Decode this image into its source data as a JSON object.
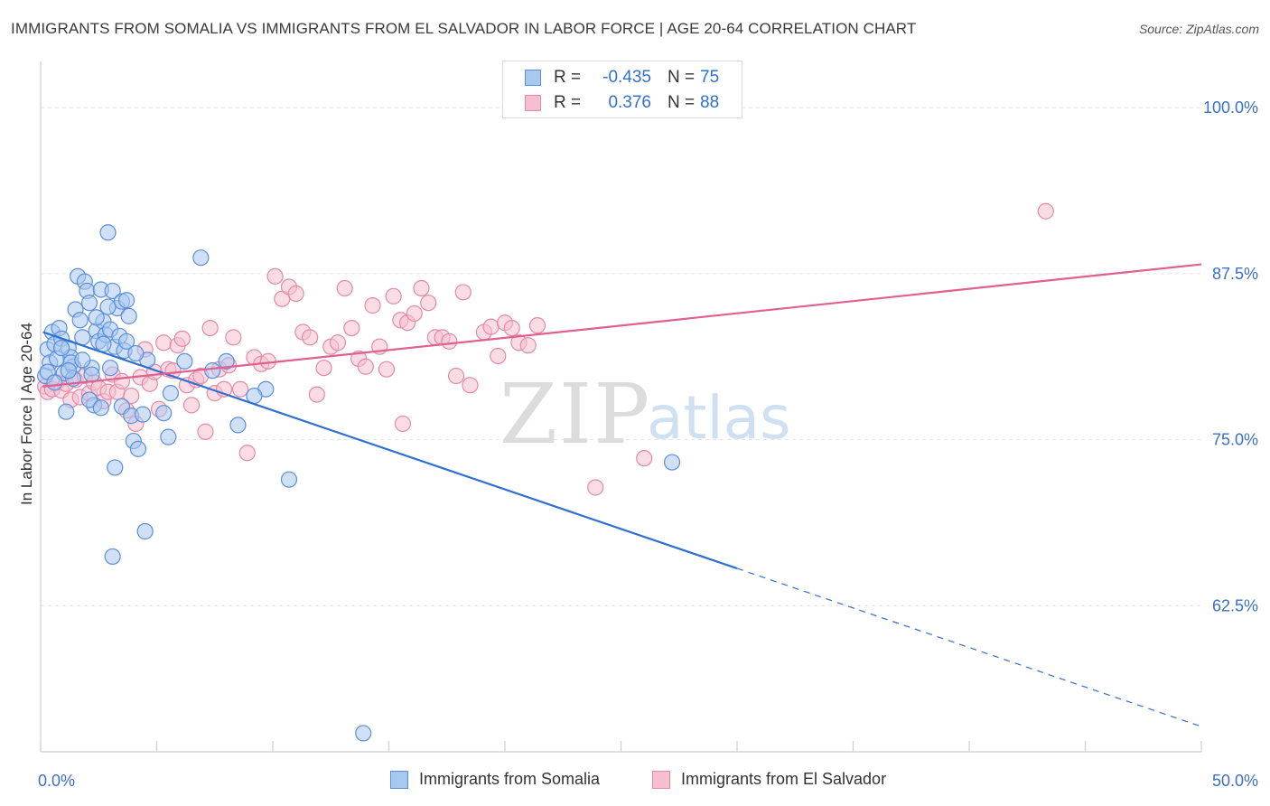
{
  "header": {
    "title": "IMMIGRANTS FROM SOMALIA VS IMMIGRANTS FROM EL SALVADOR IN LABOR FORCE | AGE 20-64 CORRELATION CHART",
    "source": "Source: ZipAtlas.com"
  },
  "legend": {
    "rows": [
      {
        "r_label": "R =",
        "r_value": "-0.435",
        "n_label": "N =",
        "n_value": "75"
      },
      {
        "r_label": "R =",
        "r_value": "0.376",
        "n_label": "N =",
        "n_value": "88"
      }
    ]
  },
  "watermark": {
    "zip": "ZIP",
    "atlas": "atlas"
  },
  "colors": {
    "somalia_fill": "#a9c8f0",
    "somalia_stroke": "#5b8fd8",
    "somalia_line": "#2f6fd0",
    "elsalvador_fill": "#f6bfd0",
    "elsalvador_stroke": "#e38aa8",
    "elsalvador_line": "#e0608f",
    "tick_label": "#3a70c8",
    "grid": "#e3e3e3"
  },
  "chart_data": {
    "type": "scatter",
    "ylabel": "In Labor Force | Age 20-64",
    "x_tick_labels": [
      "0.0%",
      "50.0%"
    ],
    "y_tick_labels": [
      "100.0%",
      "87.5%",
      "75.0%",
      "62.5%"
    ],
    "xlim": [
      0,
      50
    ],
    "ylim": [
      51.5,
      103
    ],
    "y_gridlines": [
      100,
      87.5,
      75,
      62.5
    ],
    "series": [
      {
        "name": "Immigrants from Somalia",
        "points": [
          [
            0.3,
            81.8
          ],
          [
            0.4,
            80.8
          ],
          [
            0.5,
            83.1
          ],
          [
            0.6,
            82.2
          ],
          [
            0.7,
            81.1
          ],
          [
            0.8,
            83.4
          ],
          [
            0.9,
            82.6
          ],
          [
            1.0,
            80.0
          ],
          [
            1.1,
            77.1
          ],
          [
            1.2,
            81.9
          ],
          [
            1.3,
            81.2
          ],
          [
            1.4,
            80.5
          ],
          [
            1.5,
            84.8
          ],
          [
            1.6,
            87.3
          ],
          [
            1.7,
            84.0
          ],
          [
            1.8,
            82.7
          ],
          [
            1.9,
            86.9
          ],
          [
            2.0,
            86.2
          ],
          [
            2.1,
            85.3
          ],
          [
            2.2,
            80.4
          ],
          [
            2.3,
            77.6
          ],
          [
            2.4,
            83.2
          ],
          [
            2.5,
            82.4
          ],
          [
            2.6,
            86.3
          ],
          [
            2.7,
            83.9
          ],
          [
            2.8,
            82.9
          ],
          [
            2.9,
            90.6
          ],
          [
            3.0,
            83.3
          ],
          [
            3.1,
            86.2
          ],
          [
            3.2,
            82.0
          ],
          [
            3.3,
            84.9
          ],
          [
            3.4,
            82.8
          ],
          [
            3.5,
            85.4
          ],
          [
            3.6,
            81.7
          ],
          [
            3.7,
            85.5
          ],
          [
            3.8,
            84.3
          ],
          [
            4.0,
            74.9
          ],
          [
            4.2,
            74.3
          ],
          [
            4.6,
            81.0
          ],
          [
            5.5,
            75.2
          ],
          [
            6.9,
            88.7
          ],
          [
            8.5,
            76.1
          ],
          [
            9.7,
            78.8
          ],
          [
            10.7,
            72.0
          ],
          [
            13.9,
            52.9
          ],
          [
            27.2,
            73.3
          ],
          [
            3.1,
            66.2
          ],
          [
            4.5,
            68.1
          ],
          [
            3.2,
            72.9
          ],
          [
            0.2,
            79.8
          ],
          [
            0.3,
            80.1
          ],
          [
            0.6,
            79.3
          ],
          [
            1.4,
            79.6
          ],
          [
            2.2,
            79.9
          ],
          [
            2.7,
            82.2
          ],
          [
            3.0,
            80.4
          ],
          [
            3.7,
            82.4
          ],
          [
            4.1,
            81.5
          ],
          [
            5.6,
            78.5
          ],
          [
            6.2,
            80.9
          ],
          [
            7.4,
            80.2
          ],
          [
            8.0,
            80.9
          ],
          [
            9.2,
            78.3
          ],
          [
            2.1,
            78.0
          ],
          [
            2.6,
            77.4
          ],
          [
            3.5,
            77.5
          ],
          [
            3.9,
            76.8
          ],
          [
            4.4,
            76.9
          ],
          [
            5.3,
            77.0
          ],
          [
            1.3,
            80.8
          ],
          [
            1.8,
            81.0
          ],
          [
            1.2,
            80.2
          ],
          [
            2.4,
            84.2
          ],
          [
            2.9,
            85.0
          ],
          [
            0.9,
            81.9
          ]
        ]
      },
      {
        "name": "Immigrants from El Salvador",
        "points": [
          [
            0.2,
            79.0
          ],
          [
            0.3,
            78.6
          ],
          [
            0.5,
            78.8
          ],
          [
            0.7,
            79.3
          ],
          [
            0.9,
            78.7
          ],
          [
            1.1,
            79.2
          ],
          [
            1.3,
            78.0
          ],
          [
            1.5,
            79.5
          ],
          [
            1.7,
            78.2
          ],
          [
            1.9,
            79.8
          ],
          [
            2.1,
            78.5
          ],
          [
            2.3,
            79.3
          ],
          [
            2.5,
            78.9
          ],
          [
            2.7,
            77.9
          ],
          [
            2.9,
            78.6
          ],
          [
            3.1,
            79.9
          ],
          [
            3.3,
            78.6
          ],
          [
            3.5,
            79.4
          ],
          [
            3.7,
            77.2
          ],
          [
            3.9,
            78.3
          ],
          [
            4.1,
            76.2
          ],
          [
            4.3,
            79.7
          ],
          [
            4.5,
            81.8
          ],
          [
            4.7,
            79.2
          ],
          [
            4.9,
            80.1
          ],
          [
            5.1,
            77.3
          ],
          [
            5.3,
            82.3
          ],
          [
            5.5,
            80.3
          ],
          [
            5.7,
            80.2
          ],
          [
            5.9,
            82.1
          ],
          [
            6.1,
            82.6
          ],
          [
            6.3,
            79.1
          ],
          [
            6.5,
            77.6
          ],
          [
            6.7,
            79.5
          ],
          [
            6.9,
            79.8
          ],
          [
            7.1,
            75.6
          ],
          [
            7.3,
            83.4
          ],
          [
            7.5,
            78.5
          ],
          [
            7.7,
            80.3
          ],
          [
            7.9,
            78.8
          ],
          [
            8.1,
            80.6
          ],
          [
            8.3,
            82.7
          ],
          [
            8.6,
            78.8
          ],
          [
            8.9,
            74.0
          ],
          [
            9.2,
            81.2
          ],
          [
            9.5,
            80.7
          ],
          [
            9.8,
            80.9
          ],
          [
            10.1,
            87.3
          ],
          [
            10.4,
            85.6
          ],
          [
            10.7,
            86.5
          ],
          [
            11.0,
            86.0
          ],
          [
            11.3,
            83.1
          ],
          [
            11.6,
            82.7
          ],
          [
            11.9,
            78.4
          ],
          [
            12.2,
            80.4
          ],
          [
            12.5,
            82.0
          ],
          [
            12.8,
            82.3
          ],
          [
            13.1,
            86.4
          ],
          [
            13.4,
            83.4
          ],
          [
            13.7,
            81.1
          ],
          [
            14.0,
            80.5
          ],
          [
            14.3,
            85.1
          ],
          [
            14.6,
            82.0
          ],
          [
            14.9,
            80.3
          ],
          [
            15.2,
            85.8
          ],
          [
            15.5,
            84.0
          ],
          [
            15.8,
            83.8
          ],
          [
            16.1,
            84.5
          ],
          [
            16.4,
            86.4
          ],
          [
            16.7,
            85.3
          ],
          [
            17.0,
            82.7
          ],
          [
            17.3,
            82.7
          ],
          [
            17.6,
            82.4
          ],
          [
            17.9,
            79.8
          ],
          [
            18.2,
            86.1
          ],
          [
            18.5,
            79.1
          ],
          [
            19.1,
            83.1
          ],
          [
            19.4,
            83.5
          ],
          [
            19.7,
            81.3
          ],
          [
            20.0,
            83.8
          ],
          [
            20.3,
            83.4
          ],
          [
            20.6,
            82.3
          ],
          [
            21.0,
            82.1
          ],
          [
            21.4,
            83.6
          ],
          [
            23.9,
            71.4
          ],
          [
            26.0,
            73.6
          ],
          [
            43.3,
            92.2
          ],
          [
            15.6,
            76.2
          ]
        ]
      }
    ],
    "trendlines": [
      {
        "series": "Immigrants from Somalia",
        "x_start": 0.1,
        "y_start": 83.1,
        "x_solid_end": 30.0,
        "x_end": 50.0,
        "y_end": 53.4,
        "dashed_after": 30.0
      },
      {
        "series": "Immigrants from El Salvador",
        "x_start": 0.1,
        "y_start": 79.0,
        "x_end": 50.0,
        "y_end": 88.2
      }
    ]
  },
  "bottom_legend": [
    {
      "label": "Immigrants from Somalia"
    },
    {
      "label": "Immigrants from El Salvador"
    }
  ]
}
